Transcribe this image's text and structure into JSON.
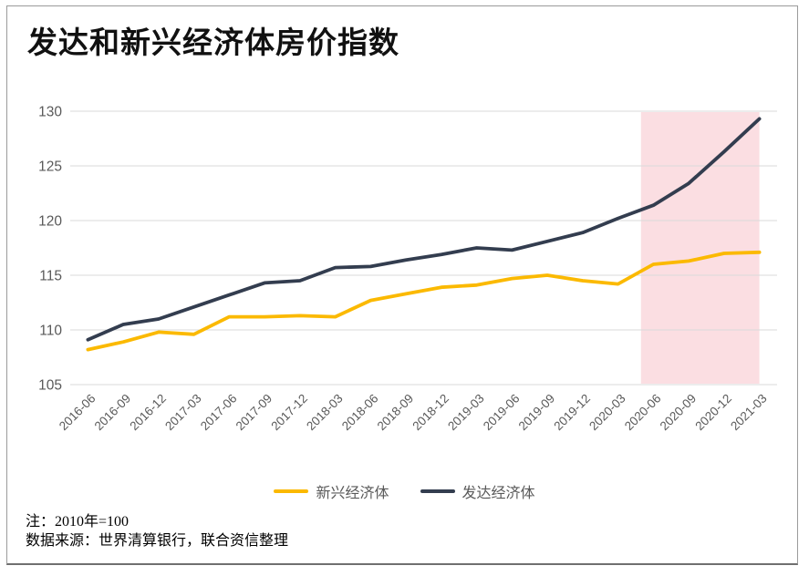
{
  "title": "发达和新兴经济体房价指数",
  "chart_data": {
    "type": "line",
    "categories": [
      "2016-06",
      "2016-09",
      "2016-12",
      "2017-03",
      "2017-06",
      "2017-09",
      "2017-12",
      "2018-03",
      "2018-06",
      "2018-09",
      "2018-12",
      "2019-03",
      "2019-06",
      "2019-09",
      "2019-12",
      "2020-03",
      "2020-06",
      "2020-09",
      "2020-12",
      "2021-03"
    ],
    "series": [
      {
        "name": "新兴经济体",
        "color": "#FBB900",
        "values": [
          108.2,
          108.9,
          109.8,
          109.6,
          111.2,
          111.2,
          111.3,
          111.2,
          112.7,
          113.3,
          113.9,
          114.1,
          114.7,
          115.0,
          114.5,
          114.2,
          116.0,
          116.3,
          117.0,
          117.1
        ]
      },
      {
        "name": "发达经济体",
        "color": "#333D4F",
        "values": [
          109.1,
          110.5,
          111.0,
          112.1,
          113.2,
          114.3,
          114.5,
          115.7,
          115.8,
          116.4,
          116.9,
          117.5,
          117.3,
          118.1,
          118.9,
          120.2,
          121.4,
          123.4,
          126.3,
          129.3
        ]
      }
    ],
    "ylim": [
      105,
      130
    ],
    "yticks": [
      105,
      110,
      115,
      120,
      125,
      130
    ],
    "grid": "horizontal",
    "gridline_color": "#D9D9D9",
    "axis_label_color": "#595959",
    "legend_position": "bottom",
    "highlight_band": {
      "from": "2020-06",
      "to": "2021-03",
      "color": "#FBDEE2"
    }
  },
  "footer": {
    "note": "注：2010年=100",
    "source": "数据来源：世界清算银行，联合资信整理"
  }
}
